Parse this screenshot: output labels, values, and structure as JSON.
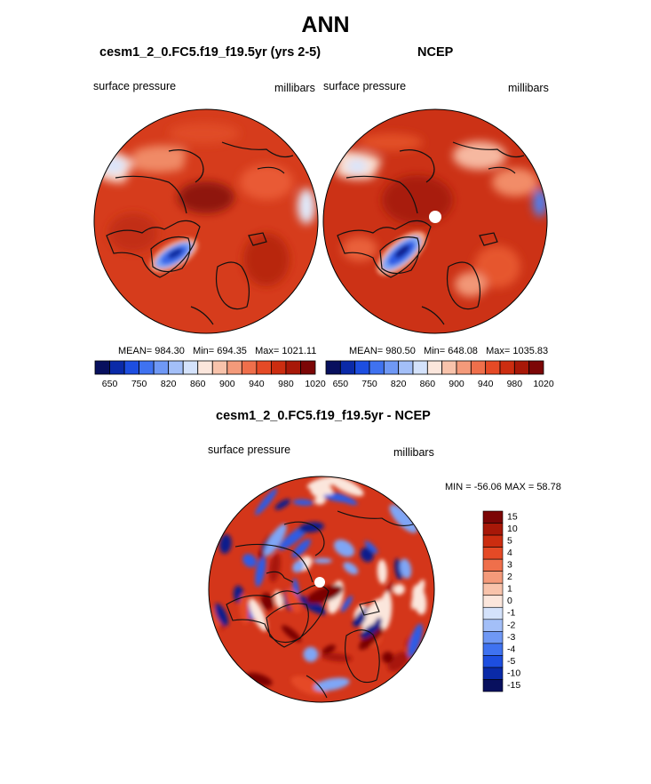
{
  "page": {
    "title": "ANN"
  },
  "panels": [
    {
      "title": "cesm1_2_0.FC5.f19_f19.5yr (yrs 2-5)",
      "left_label": "surface pressure",
      "right_label": "millibars",
      "stats": {
        "mean": "MEAN= 984.30",
        "min": "Min= 694.35",
        "max": "Max= 1021.11"
      }
    },
    {
      "title": "NCEP",
      "left_label": "surface pressure",
      "right_label": "millibars",
      "stats": {
        "mean": "MEAN= 980.50",
        "min": "Min= 648.08",
        "max": "Max= 1035.83"
      }
    },
    {
      "title": "cesm1_2_0.FC5.f19_f19.5yr - NCEP",
      "left_label": "surface pressure",
      "right_label": "millibars",
      "stats": {
        "minmax": "MIN = -56.06 MAX =  58.78"
      }
    }
  ],
  "chart_data": [
    {
      "type": "heatmap",
      "title": "cesm1_2_0.FC5.f19_f19.5yr (yrs 2-5)",
      "projection": "north polar stereographic",
      "variable": "surface pressure",
      "units": "millibars",
      "mean": 984.3,
      "min": 694.35,
      "max": 1021.11,
      "colorbar_tick_labels": [
        "650",
        "750",
        "820",
        "860",
        "900",
        "940",
        "980",
        "1020"
      ],
      "colorbar_colors": [
        "#08105e",
        "#0a2aa8",
        "#1d4ee0",
        "#3f72f0",
        "#6f98f5",
        "#a3bff8",
        "#d4e2fb",
        "#fbe6dc",
        "#f8c3ab",
        "#f49a7a",
        "#ef6f4b",
        "#e54a26",
        "#cc2d10",
        "#a81808",
        "#7c0606"
      ]
    },
    {
      "type": "heatmap",
      "title": "NCEP",
      "projection": "north polar stereographic",
      "variable": "surface pressure",
      "units": "millibars",
      "mean": 980.5,
      "min": 648.08,
      "max": 1035.83,
      "colorbar_tick_labels": [
        "650",
        "750",
        "820",
        "860",
        "900",
        "940",
        "980",
        "1020"
      ],
      "colorbar_colors": [
        "#08105e",
        "#0a2aa8",
        "#1d4ee0",
        "#3f72f0",
        "#6f98f5",
        "#a3bff8",
        "#d4e2fb",
        "#fbe6dc",
        "#f8c3ab",
        "#f49a7a",
        "#ef6f4b",
        "#e54a26",
        "#cc2d10",
        "#a81808",
        "#7c0606"
      ]
    },
    {
      "type": "heatmap",
      "title": "cesm1_2_0.FC5.f19_f19.5yr - NCEP",
      "projection": "north polar stereographic",
      "variable": "surface pressure",
      "units": "millibars",
      "min": -56.06,
      "max": 58.78,
      "colorbar_tick_labels": [
        "15",
        "10",
        "5",
        "4",
        "3",
        "2",
        "1",
        "0",
        "-1",
        "-2",
        "-3",
        "-4",
        "-5",
        "-10",
        "-15"
      ],
      "colorbar_colors": [
        "#7c0606",
        "#a81808",
        "#cc2d10",
        "#e54a26",
        "#ef6f4b",
        "#f49a7a",
        "#f8c3ab",
        "#fbe6dc",
        "#d4e2fb",
        "#a3bff8",
        "#6f98f5",
        "#3f72f0",
        "#1d4ee0",
        "#0a2aa8",
        "#08105e"
      ]
    }
  ]
}
